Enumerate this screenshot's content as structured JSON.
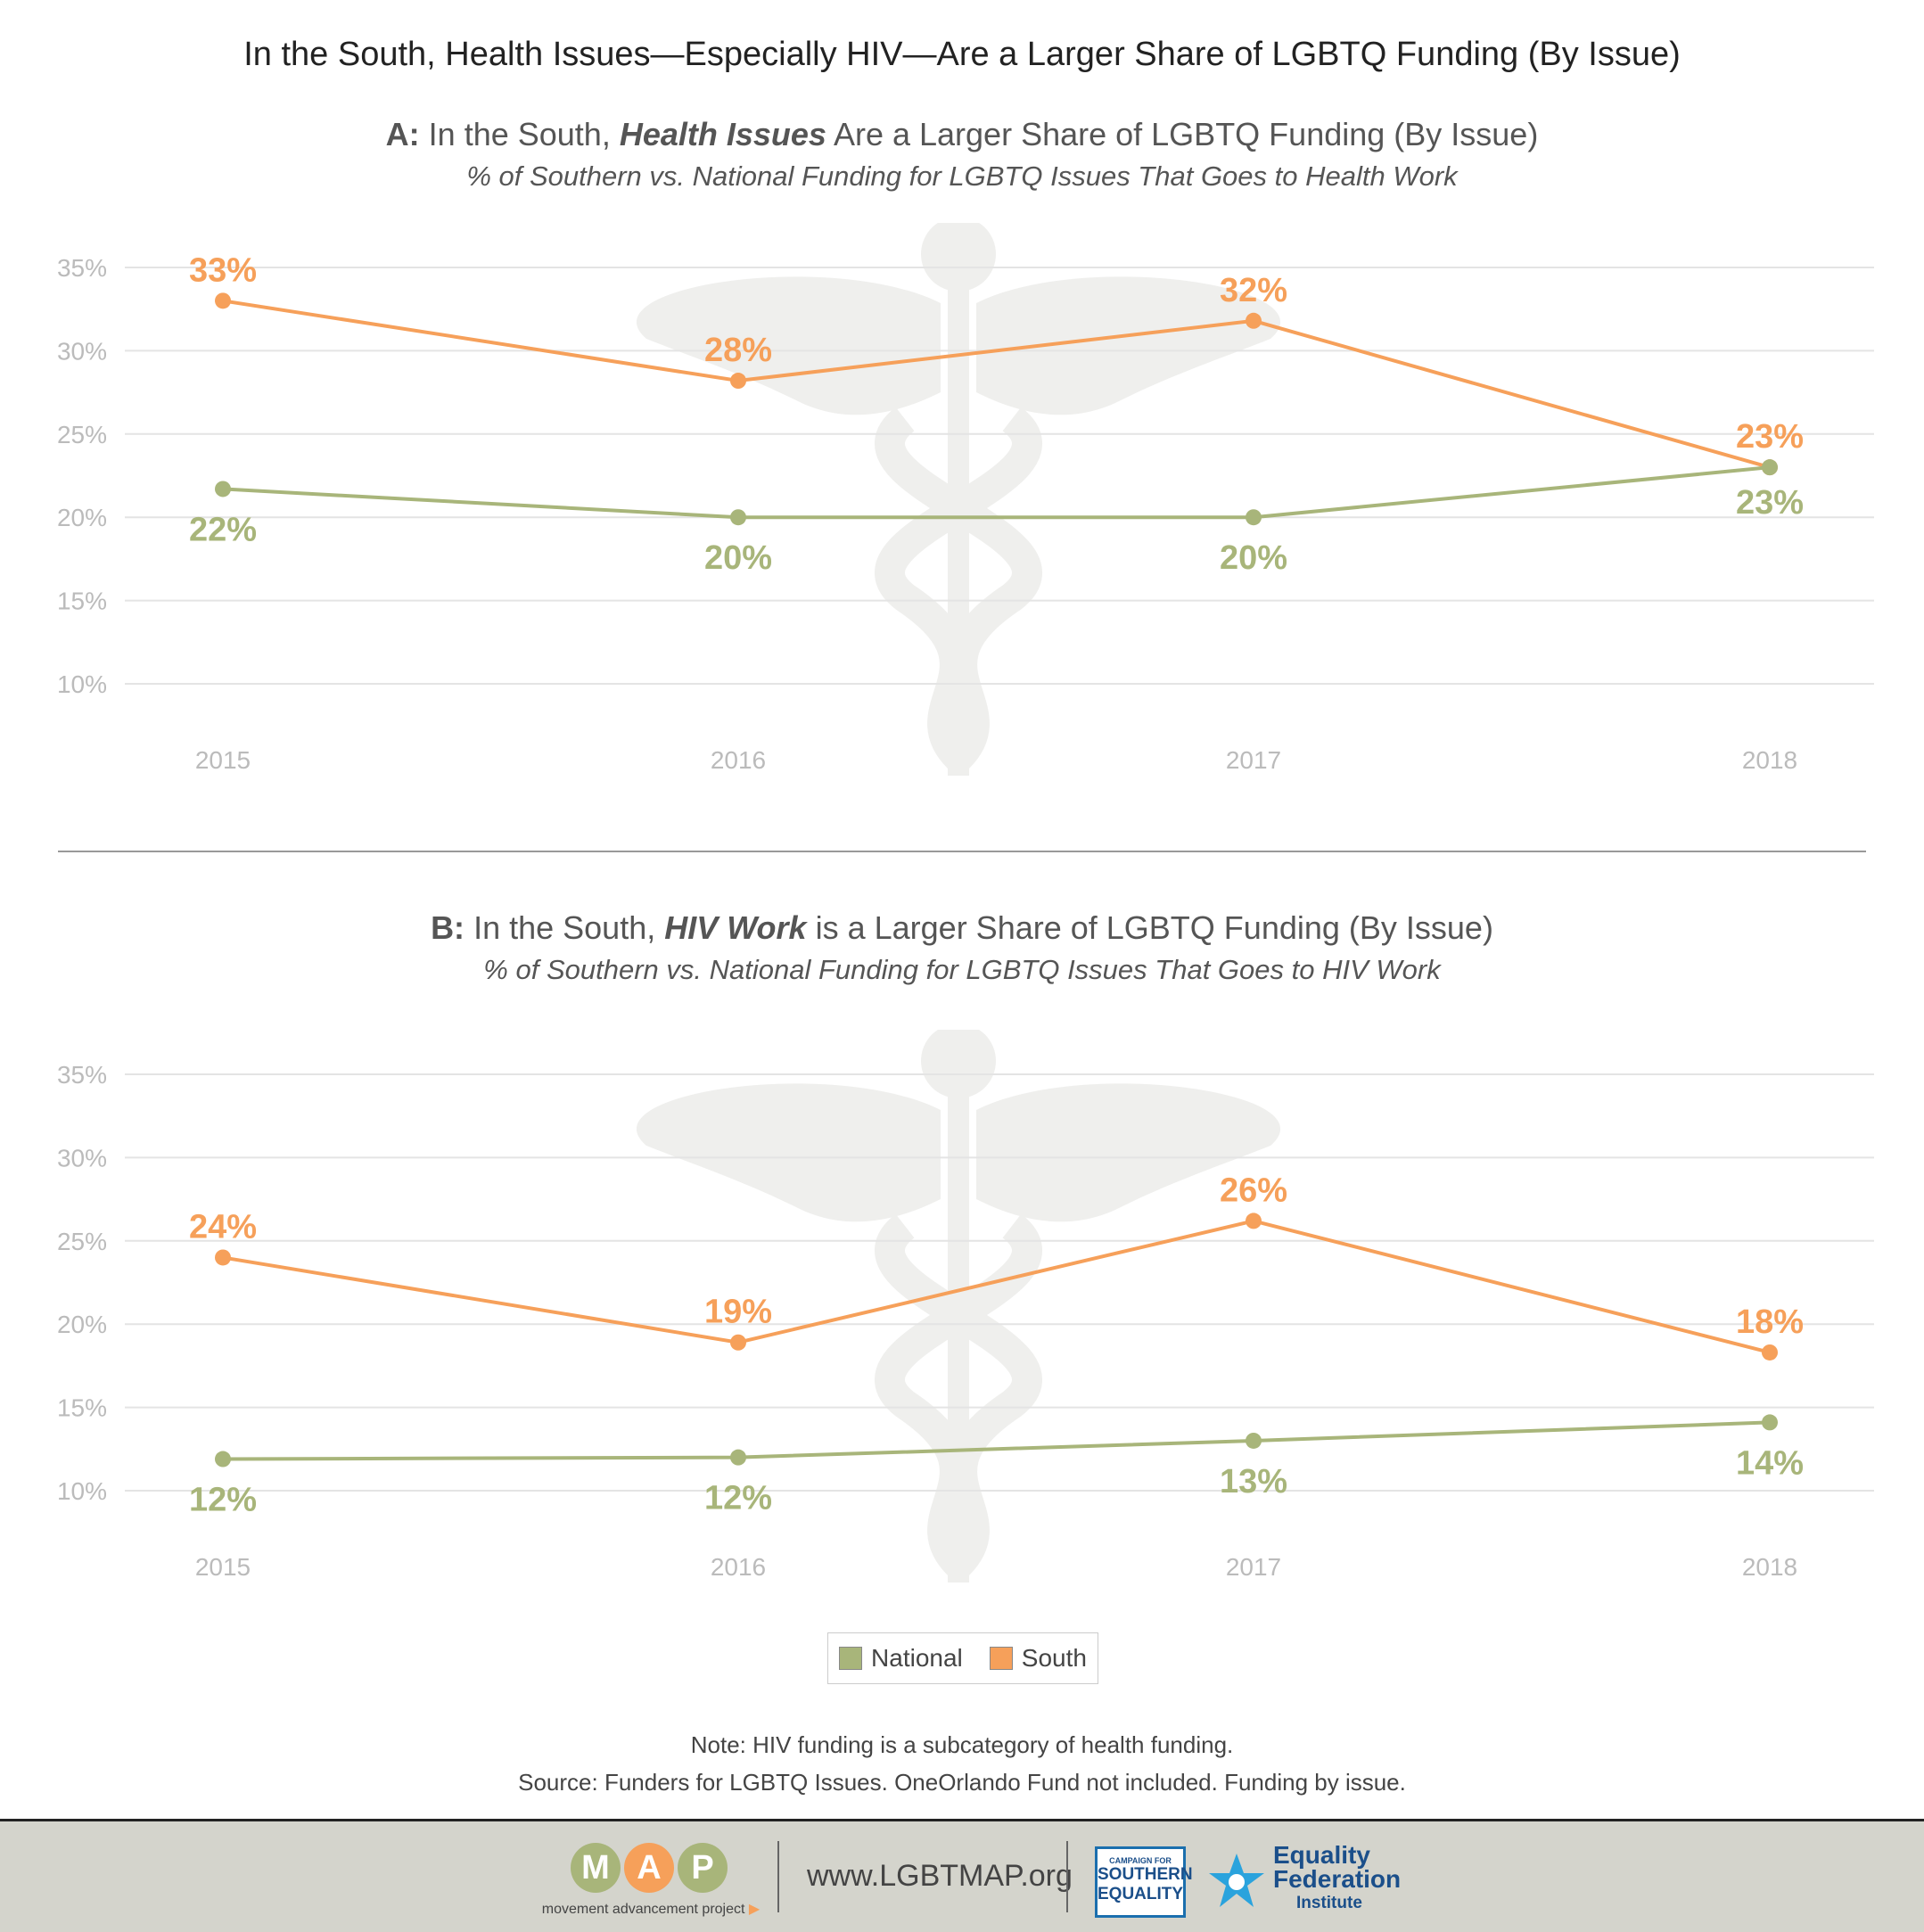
{
  "title": "In the South, Health Issues—Especially HIV—Are a Larger Share of LGBTQ Funding (By Issue)",
  "panels": [
    {
      "letter": "A:",
      "title_pre": " In the South, ",
      "title_em": "Health Issues",
      "title_post": " Are a Larger Share of LGBTQ Funding (By Issue)",
      "subtitle": "% of Southern vs. National Funding for LGBTQ Issues That Goes to Health Work"
    },
    {
      "letter": "B:",
      "title_pre": " In the South, ",
      "title_em": "HIV Work",
      "title_post": " is a Larger Share of LGBTQ Funding (By Issue)",
      "subtitle": "% of Southern vs. National Funding for LGBTQ Issues That Goes to HIV Work"
    }
  ],
  "chart_data": [
    {
      "type": "line",
      "title": "A: In the South, Health Issues Are a Larger Share of LGBTQ Funding (By Issue)",
      "subtitle": "% of Southern vs. National Funding for LGBTQ Issues That Goes to Health Work",
      "x": [
        "2015",
        "2016",
        "2017",
        "2018"
      ],
      "ylim": [
        10,
        35
      ],
      "yticks": [
        "10%",
        "15%",
        "20%",
        "25%",
        "30%",
        "35%"
      ],
      "grid": true,
      "series": [
        {
          "name": "South",
          "color": "#f6a05a",
          "values": [
            33,
            28.2,
            31.8,
            23
          ],
          "labels": [
            "33%",
            "28%",
            "32%",
            "23%"
          ]
        },
        {
          "name": "National",
          "color": "#a8b57a",
          "values": [
            21.7,
            20,
            20,
            23
          ],
          "labels": [
            "22%",
            "20%",
            "20%",
            "23%"
          ]
        }
      ]
    },
    {
      "type": "line",
      "title": "B: In the South, HIV Work is a Larger Share of LGBTQ Funding (By Issue)",
      "subtitle": "% of Southern vs. National Funding for LGBTQ Issues That Goes to HIV Work",
      "x": [
        "2015",
        "2016",
        "2017",
        "2018"
      ],
      "ylim": [
        10,
        35
      ],
      "yticks": [
        "10%",
        "15%",
        "20%",
        "25%",
        "30%",
        "35%"
      ],
      "grid": true,
      "series": [
        {
          "name": "South",
          "color": "#f6a05a",
          "values": [
            24,
            18.9,
            26.2,
            18.3
          ],
          "labels": [
            "24%",
            "19%",
            "26%",
            "18%"
          ]
        },
        {
          "name": "National",
          "color": "#a8b57a",
          "values": [
            11.9,
            12,
            13,
            14.1
          ],
          "labels": [
            "12%",
            "12%",
            "13%",
            "14%"
          ]
        }
      ]
    }
  ],
  "legend": {
    "placement": "bottom-center",
    "items": [
      {
        "label": "National",
        "color": "#a8b57a"
      },
      {
        "label": "South",
        "color": "#f6a05a"
      }
    ]
  },
  "notes": {
    "note": "Note: HIV funding is a subcategory of health funding.",
    "source": "Source: Funders for LGBTQ Issues. OneOrlando Fund not included. Funding by issue."
  },
  "footer": {
    "map_letters": [
      "M",
      "A",
      "P"
    ],
    "map_tagline": "movement advancement project",
    "url": "www.LGBTMAP.org",
    "cse_small": "CAMPAIGN FOR",
    "cse_line1": "SOUTHERN",
    "cse_line2": "EQUALITY",
    "efi_line1": "Equality",
    "efi_line2": "Federation",
    "efi_line3": "Institute"
  }
}
